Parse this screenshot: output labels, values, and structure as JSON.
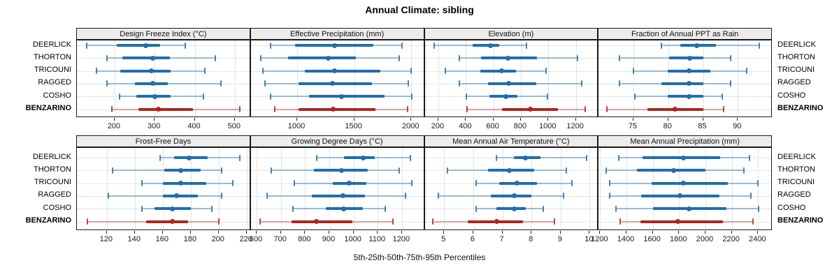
{
  "title": "Annual Climate: sibling",
  "caption": "5th-25th-50th-75th-95th Percentiles",
  "stations": [
    "DEERLICK",
    "THORTON",
    "TRICOUNI",
    "RAGGED",
    "COSHO",
    "BENZARINO"
  ],
  "highlight_station": "BENZARINO",
  "colors": {
    "blue_main": "#1f6eb0",
    "blue_faint": "rgba(31,110,176,0.42)",
    "blue_cap": "rgba(31,110,176,0.85)",
    "red_main": "#b0261c",
    "red_faint": "rgba(176,38,28,0.38)",
    "red_cap": "rgba(176,38,28,0.85)",
    "grid": "#c9c9c9",
    "strip_bg": "#ececec",
    "border": "#1a1a1a"
  },
  "chart_data": {
    "type": "scatter",
    "variant": "percentile-interval-dotplot",
    "percentiles": [
      "5th",
      "25th",
      "50th",
      "75th",
      "95th"
    ],
    "grid": "dotted",
    "legend_position": "none",
    "panels": [
      {
        "row": 0,
        "col": 0,
        "label": "Design Freeze Index (°C)",
        "xlim": [
          106,
          540
        ],
        "ticks": [
          200,
          300,
          400,
          500
        ],
        "values": [
          [
            131,
            206,
            277,
            314,
            377
          ],
          [
            181,
            219,
            295,
            338,
            451
          ],
          [
            155,
            215,
            291,
            340,
            425
          ],
          [
            181,
            251,
            295,
            332,
            465
          ],
          [
            213,
            255,
            301,
            340,
            422
          ],
          [
            194,
            259,
            310,
            395,
            513
          ]
        ]
      },
      {
        "row": 0,
        "col": 1,
        "label": "Effective Precipitation (mm)",
        "xlim": [
          594,
          2118
        ],
        "ticks": [
          1000,
          1500,
          2000
        ],
        "values": [
          [
            770,
            984,
            1330,
            1665,
            1919
          ],
          [
            679,
            923,
            1275,
            1513,
            1895
          ],
          [
            699,
            1065,
            1330,
            1726,
            2001
          ],
          [
            719,
            1014,
            1309,
            1655,
            1976
          ],
          [
            766,
            1106,
            1387,
            1767,
            2005
          ],
          [
            801,
            1010,
            1315,
            1686,
            1970
          ]
        ]
      },
      {
        "row": 0,
        "col": 2,
        "label": "Elevation (m)",
        "xlim": [
          101,
          1366
        ],
        "ticks": [
          200,
          400,
          600,
          800,
          1000,
          1200
        ],
        "values": [
          [
            170,
            449,
            580,
            644,
            839
          ],
          [
            351,
            512,
            707,
            919,
            1212
          ],
          [
            253,
            503,
            661,
            766,
            983
          ],
          [
            351,
            559,
            712,
            910,
            1241
          ],
          [
            402,
            571,
            690,
            775,
            992
          ],
          [
            407,
            664,
            868,
            1071,
            1266
          ]
        ]
      },
      {
        "row": 0,
        "col": 3,
        "label": "Fraction of Annual PPT as Rain",
        "xlim": [
          70,
          95
        ],
        "ticks": [
          75,
          80,
          85,
          90
        ],
        "values": [
          [
            79,
            81.7,
            84.1,
            86.9,
            93.1
          ],
          [
            73,
            80.1,
            83.1,
            85.1,
            89
          ],
          [
            75,
            79.9,
            83,
            86.1,
            91.3
          ],
          [
            73,
            79,
            83,
            85.1,
            89
          ],
          [
            75.2,
            79.9,
            83,
            85.1,
            87.8
          ],
          [
            71.2,
            77,
            81,
            85.1,
            88
          ]
        ]
      },
      {
        "row": 1,
        "col": 0,
        "label": "Frost-Free Days",
        "xlim": [
          98.6,
          223
        ],
        "ticks": [
          120,
          140,
          160,
          180,
          200,
          220
        ],
        "values": [
          [
            158,
            168,
            179,
            192,
            215
          ],
          [
            124,
            161,
            173,
            187,
            202
          ],
          [
            145,
            160,
            173,
            191,
            210
          ],
          [
            121,
            160,
            170,
            185,
            202
          ],
          [
            145,
            154,
            167,
            180,
            195
          ],
          [
            106,
            148,
            167,
            178,
            200
          ]
        ]
      },
      {
        "row": 1,
        "col": 1,
        "label": "Growing Degree Days (°C)",
        "xlim": [
          576,
          1294
        ],
        "ticks": [
          600,
          700,
          800,
          900,
          1000,
          1100,
          1200
        ],
        "values": [
          [
            849,
            962,
            1040,
            1087,
            1234
          ],
          [
            659,
            836,
            950,
            1060,
            1190
          ],
          [
            755,
            913,
            983,
            1053,
            1240
          ],
          [
            644,
            827,
            955,
            1048,
            1214
          ],
          [
            750,
            885,
            960,
            1038,
            1130
          ],
          [
            615,
            745,
            846,
            995,
            1163
          ]
        ]
      },
      {
        "row": 1,
        "col": 2,
        "label": "Mean Annual Air Temperature (°C)",
        "xlim": [
          4.33,
          10.31
        ],
        "ticks": [
          5,
          6,
          7,
          8,
          9,
          10
        ],
        "values": [
          [
            6.8,
            7.4,
            7.8,
            8.3,
            9.9
          ],
          [
            5.1,
            6.5,
            7.25,
            8.1,
            9.2
          ],
          [
            6.1,
            6.9,
            7.5,
            8.2,
            9.4
          ],
          [
            4.8,
            6.6,
            7.4,
            8,
            9.1
          ],
          [
            6.1,
            6.8,
            7.4,
            7.8,
            8.4
          ],
          [
            4.6,
            5.8,
            6.8,
            7.7,
            8.8
          ]
        ]
      },
      {
        "row": 1,
        "col": 3,
        "label": "Mean Annual Precipitation (mm)",
        "xlim": [
          1189,
          2510
        ],
        "ticks": [
          1200,
          1400,
          1600,
          1800,
          2000,
          2200,
          2400
        ],
        "values": [
          [
            1342,
            1522,
            1832,
            2112,
            2333
          ],
          [
            1248,
            1481,
            1758,
            2000,
            2292
          ],
          [
            1274,
            1593,
            1832,
            2168,
            2398
          ],
          [
            1274,
            1513,
            1805,
            2106,
            2345
          ],
          [
            1322,
            1602,
            1876,
            2159,
            2402
          ],
          [
            1354,
            1504,
            1788,
            2133,
            2359
          ]
        ]
      }
    ]
  }
}
